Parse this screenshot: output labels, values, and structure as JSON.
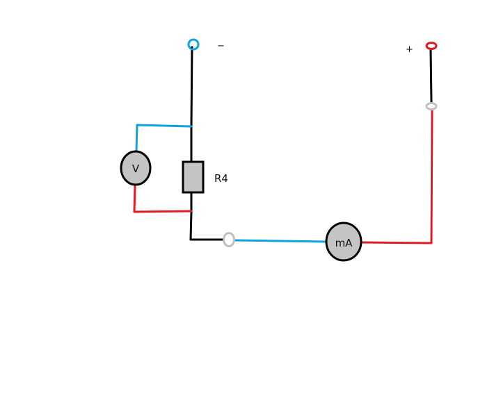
{
  "labels": {
    "negative_terminal": "−",
    "positive_terminal": "+",
    "resistor": "R4",
    "voltmeter": "V",
    "milliammeter": "mA"
  },
  "colors": {
    "background": "#ffffff",
    "wire_black": "#000000",
    "wire_blue": "#0aa3e3",
    "wire_red": "#e01b24",
    "component_fill": "#c4c4c4",
    "open_switch": "#c0c0c0"
  }
}
